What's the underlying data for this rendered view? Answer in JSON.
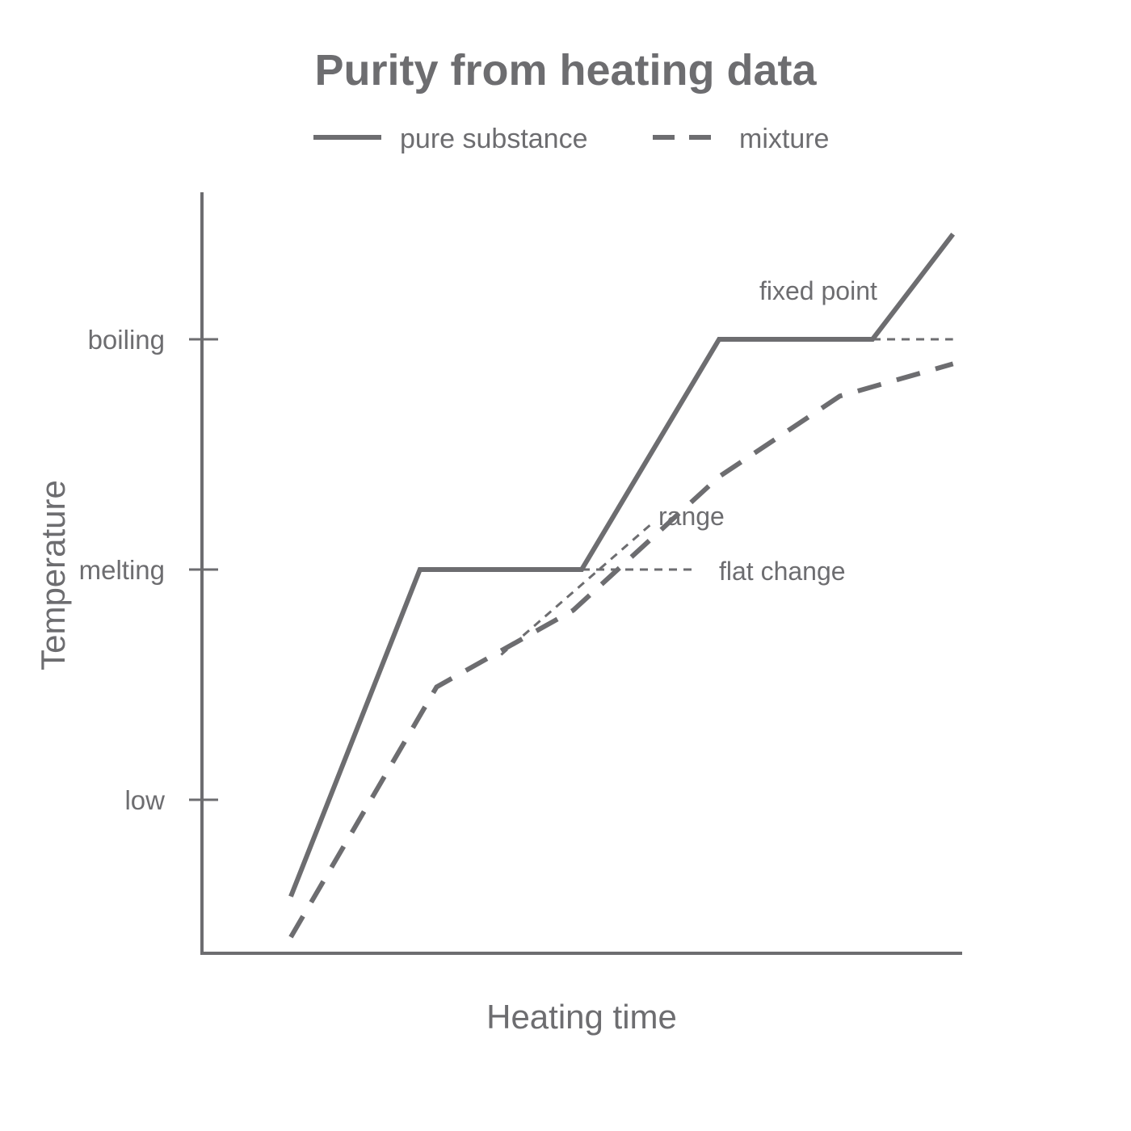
{
  "chart_data": {
    "type": "line",
    "title": "Purity from heating data",
    "xlabel": "Heating time",
    "ylabel": "Temperature",
    "xlim": [
      0,
      10
    ],
    "ylim": [
      0,
      10
    ],
    "yticks": [
      {
        "label": "low",
        "value": 2
      },
      {
        "label": "melting",
        "value": 5
      },
      {
        "label": "boiling",
        "value": 8
      }
    ],
    "legend": "top-center",
    "series": [
      {
        "name": "pure substance",
        "style": "solid",
        "x": [
          1.17,
          2.87,
          5.0,
          6.81,
          8.83,
          9.89
        ],
        "y": [
          0.74,
          5.0,
          5.0,
          8.0,
          8.0,
          9.37
        ]
      },
      {
        "name": "mixture",
        "style": "dashed",
        "x": [
          1.17,
          3.09,
          4.89,
          6.81,
          8.4,
          9.89
        ],
        "y": [
          0.21,
          3.47,
          4.47,
          6.21,
          7.26,
          7.68
        ]
      }
    ],
    "reference_lines": [
      {
        "label": "flat change",
        "x": [
          5.0,
          6.49
        ],
        "y": [
          5.0,
          5.0
        ]
      },
      {
        "label": "fixed point",
        "x": [
          8.83,
          9.89
        ],
        "y": [
          8.0,
          8.0
        ]
      },
      {
        "label": "range",
        "x": [
          3.94,
          5.96
        ],
        "y": [
          3.89,
          5.63
        ]
      }
    ],
    "color": "#6d6d70"
  }
}
